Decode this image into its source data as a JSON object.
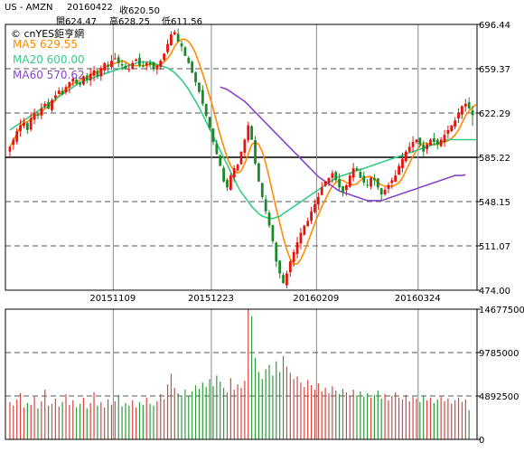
{
  "header": {
    "symbol": "US - AMZN",
    "date": "20160422",
    "close_text": "收620.50",
    "open_text": "開624.47",
    "high_text": "高628.25",
    "low_text": "低611.56",
    "watermark": "© cnYES鉅亨網"
  },
  "ma_labels": [
    {
      "text": "MA5 629.55",
      "color": "#ff8c00"
    },
    {
      "text": "MA20 600.00",
      "color": "#33cc88"
    },
    {
      "text": "MA60 570.62",
      "color": "#8844cc"
    }
  ],
  "chart_data": [
    {
      "type": "candlestick",
      "title": "US - AMZN",
      "x": [
        "20151109",
        "20151223",
        "20160209",
        "20160324"
      ],
      "yticks": [
        696.44,
        659.37,
        622.29,
        585.22,
        548.15,
        511.07,
        474.0
      ],
      "ylim": [
        474.0,
        696.44
      ],
      "reference_line": 585.22,
      "last_bar": {
        "date": "20160422",
        "open": 624.47,
        "high": 628.25,
        "low": 611.56,
        "close": 620.5
      },
      "closes": [
        594,
        600,
        607,
        612,
        614,
        608,
        618,
        622,
        620,
        626,
        630,
        626,
        633,
        637,
        641,
        638,
        644,
        648,
        651,
        647,
        646,
        653,
        650,
        655,
        658,
        653,
        660,
        664,
        661,
        666,
        668,
        664,
        662,
        660,
        659,
        664,
        667,
        662,
        661,
        664,
        663,
        659,
        662,
        666,
        672,
        680,
        688,
        690,
        682,
        678,
        670,
        664,
        656,
        648,
        640,
        630,
        620,
        610,
        598,
        588,
        578,
        565,
        560,
        570,
        576,
        579,
        590,
        600,
        612,
        600,
        580,
        565,
        552,
        540,
        528,
        515,
        498,
        488,
        480,
        488,
        498,
        506,
        514,
        522,
        528,
        532,
        540,
        546,
        552,
        560,
        565,
        568,
        572,
        566,
        560,
        556,
        562,
        570,
        576,
        574,
        568,
        564,
        562,
        568,
        566,
        560,
        554,
        558,
        562,
        566,
        570,
        578,
        584,
        590,
        594,
        598,
        600,
        596,
        590,
        596,
        600,
        598,
        596,
        600,
        604,
        608,
        612,
        616,
        622,
        628,
        630,
        626,
        620.5
      ],
      "ma_series": [
        {
          "name": "MA5",
          "color": "#ff8c00",
          "last": 629.55,
          "offset": 0,
          "values": [
            594,
            599,
            605,
            611,
            614,
            615,
            617,
            620,
            621,
            623,
            626,
            628,
            630,
            633,
            637,
            640,
            642,
            645,
            647,
            648,
            650,
            651,
            652,
            654,
            656,
            657,
            658,
            660,
            662,
            663,
            664,
            665,
            666,
            665,
            663,
            662,
            662,
            662,
            662,
            662,
            663,
            663,
            662,
            663,
            665,
            668,
            672,
            678,
            682,
            684,
            684,
            682,
            678,
            672,
            664,
            655,
            646,
            636,
            626,
            615,
            604,
            594,
            585,
            578,
            574,
            572,
            574,
            580,
            588,
            596,
            598,
            596,
            590,
            580,
            568,
            555,
            542,
            530,
            518,
            508,
            500,
            496,
            496,
            500,
            506,
            514,
            522,
            530,
            537,
            544,
            550,
            556,
            561,
            564,
            566,
            566,
            564,
            563,
            562,
            563,
            566,
            568,
            569,
            569,
            567,
            564,
            562,
            561,
            561,
            561,
            562,
            564,
            568,
            574,
            580,
            586,
            591,
            595,
            597,
            597,
            596,
            596,
            596,
            597,
            598,
            599,
            601,
            604,
            608,
            614,
            620,
            624,
            627,
            629.55
          ]
        },
        {
          "name": "MA20",
          "color": "#33cc88",
          "last": 600.0,
          "offset": 0,
          "values": [
            608,
            610,
            612,
            614,
            616,
            618,
            620,
            622,
            624,
            626,
            628,
            630,
            632,
            634,
            636,
            638,
            640,
            642,
            644,
            646,
            648,
            649,
            650,
            651,
            652,
            653,
            654,
            655,
            656,
            657,
            658,
            659,
            660,
            661,
            662,
            663,
            664,
            665,
            665,
            665,
            665,
            664,
            663,
            662,
            661,
            660,
            658,
            656,
            653,
            650,
            646,
            642,
            637,
            632,
            627,
            621,
            615,
            609,
            603,
            597,
            591,
            585,
            579,
            573,
            567,
            561,
            556,
            552,
            548,
            544,
            541,
            538,
            536,
            535,
            534,
            534,
            535,
            536,
            538,
            540,
            542,
            544,
            546,
            548,
            550,
            552,
            554,
            556,
            558,
            560,
            562,
            564,
            566,
            568,
            569,
            570,
            571,
            572,
            573,
            574,
            575,
            576,
            577,
            578,
            579,
            580,
            581,
            582,
            583,
            584,
            585,
            586,
            587,
            588,
            589,
            590,
            591,
            592,
            593,
            594,
            595,
            596,
            597,
            598,
            599,
            600,
            600,
            600,
            600,
            600,
            600,
            600,
            600,
            600.0
          ]
        },
        {
          "name": "MA60",
          "color": "#8844cc",
          "last": 570.62,
          "offset": 60,
          "values": [
            644,
            643,
            642,
            640,
            638,
            636,
            634,
            632,
            629,
            626,
            623,
            620,
            617,
            614,
            611,
            608,
            605,
            602,
            599,
            596,
            593,
            590,
            587,
            584,
            581,
            578,
            575,
            572,
            569,
            567,
            565,
            563,
            561,
            559,
            557,
            556,
            555,
            554,
            553,
            552,
            551,
            550,
            549,
            549,
            549,
            549,
            549,
            550,
            551,
            552,
            553,
            554,
            555,
            556,
            557,
            558,
            559,
            560,
            561,
            562,
            563,
            564,
            565,
            566,
            567,
            568,
            569,
            570,
            570,
            570,
            570.62
          ]
        }
      ]
    },
    {
      "type": "bar",
      "title": "volume",
      "yticks": [
        14677500,
        9785000,
        4892500,
        0
      ],
      "ylim": [
        0,
        14677500
      ],
      "values": [
        4200000,
        3800000,
        4500000,
        5200000,
        3600000,
        4100000,
        3900000,
        4800000,
        3500000,
        4300000,
        5600000,
        3800000,
        4000000,
        4600000,
        3700000,
        4200000,
        5100000,
        3900000,
        4400000,
        3600000,
        4000000,
        4700000,
        3500000,
        4100000,
        5300000,
        3800000,
        4200000,
        3600000,
        4500000,
        3900000,
        4300000,
        5000000,
        3700000,
        4100000,
        3800000,
        4400000,
        3600000,
        4200000,
        3900000,
        4700000,
        4000000,
        3800000,
        4300000,
        5100000,
        4500000,
        6200000,
        7400000,
        5800000,
        5200000,
        4800000,
        5600000,
        4900000,
        5400000,
        6100000,
        5700000,
        6400000,
        5900000,
        6800000,
        6000000,
        7200000,
        6500000,
        5800000,
        5300000,
        6900000,
        5600000,
        6200000,
        5800000,
        6600000,
        14677500,
        13900000,
        9200000,
        7600000,
        6800000,
        7900000,
        8400000,
        7200000,
        8800000,
        7600000,
        9400000,
        8200000,
        7500000,
        6800000,
        7100000,
        6400000,
        5900000,
        6700000,
        6100000,
        5600000,
        6300000,
        5400000,
        5800000,
        5200000,
        6000000,
        5500000,
        5100000,
        5700000,
        5300000,
        4900000,
        5600000,
        5000000,
        5400000,
        4800000,
        5200000,
        4700000,
        5000000,
        5500000,
        4600000,
        5100000,
        4400000,
        4900000,
        5300000,
        4700000,
        4500000,
        5000000,
        4300000,
        4800000,
        4600000,
        4200000,
        4900000,
        4400000,
        4700000,
        4100000,
        4500000,
        4800000,
        4300000,
        4600000,
        4000000,
        4400000,
        4700000,
        4200000,
        4500000,
        3300000
      ]
    }
  ]
}
